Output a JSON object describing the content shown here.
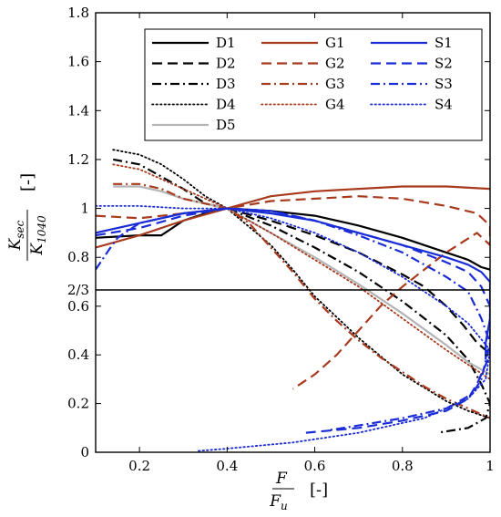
{
  "chart_data": {
    "type": "line",
    "xlim": [
      0.1,
      1.0
    ],
    "ylim_upper": [
      0.6667,
      1.8
    ],
    "ylim_lower": [
      0,
      0.6667
    ],
    "x_ticks": [
      {
        "value": 0.2,
        "label": "0.2"
      },
      {
        "value": 0.4,
        "label": "0.4"
      },
      {
        "value": 0.6,
        "label": "0.6"
      },
      {
        "value": 0.8,
        "label": "0.8"
      },
      {
        "value": 1.0,
        "label": "1"
      }
    ],
    "y_ticks": [
      {
        "value": 0,
        "label": "0"
      },
      {
        "value": 0.2,
        "label": "0.2"
      },
      {
        "value": 0.4,
        "label": "0.4"
      },
      {
        "value": 0.6,
        "label": "0.6"
      },
      {
        "value": 0.6667,
        "label": "2/3"
      },
      {
        "value": 0.8,
        "label": "0.8"
      },
      {
        "value": 1.0,
        "label": "1"
      },
      {
        "value": 1.2,
        "label": "1.2"
      },
      {
        "value": 1.4,
        "label": "1.4"
      },
      {
        "value": 1.6,
        "label": "1.6"
      },
      {
        "value": 1.8,
        "label": "1.8"
      }
    ],
    "xlabel": {
      "num": "F",
      "den": "F",
      "den_sub": "u",
      "unit": "[-]"
    },
    "ylabel": {
      "num": "K",
      "num_sub": "sec",
      "den": "K",
      "den_sub": "1040",
      "unit": "[-]"
    },
    "legend_position": "top-right",
    "series": [
      {
        "name": "D1",
        "color": "#000000",
        "dash": "solid",
        "points": [
          [
            0.1,
            0.88
          ],
          [
            0.2,
            0.89
          ],
          [
            0.25,
            0.89
          ],
          [
            0.3,
            0.95
          ],
          [
            0.35,
            0.98
          ],
          [
            0.4,
            1.0
          ],
          [
            0.5,
            0.99
          ],
          [
            0.6,
            0.97
          ],
          [
            0.7,
            0.93
          ],
          [
            0.8,
            0.88
          ],
          [
            0.9,
            0.82
          ],
          [
            0.95,
            0.79
          ],
          [
            0.98,
            0.76
          ],
          [
            1.0,
            0.75
          ]
        ]
      },
      {
        "name": "D2",
        "color": "#000000",
        "dash": "dash",
        "points": [
          [
            0.4,
            1.0
          ],
          [
            0.5,
            0.95
          ],
          [
            0.6,
            0.89
          ],
          [
            0.7,
            0.82
          ],
          [
            0.8,
            0.73
          ],
          [
            0.85,
            0.68
          ],
          [
            0.9,
            0.6
          ],
          [
            0.94,
            0.52
          ],
          [
            0.97,
            0.45
          ],
          [
            0.99,
            0.42
          ],
          [
            1.0,
            0.4
          ]
        ]
      },
      {
        "name": "D3",
        "color": "#000000",
        "dash": "dashdot",
        "points": [
          [
            0.14,
            1.2
          ],
          [
            0.2,
            1.18
          ],
          [
            0.3,
            1.08
          ],
          [
            0.35,
            1.02
          ],
          [
            0.4,
            1.0
          ],
          [
            0.5,
            0.93
          ],
          [
            0.6,
            0.84
          ],
          [
            0.7,
            0.74
          ],
          [
            0.8,
            0.62
          ],
          [
            0.9,
            0.48
          ],
          [
            0.95,
            0.38
          ],
          [
            0.98,
            0.28
          ],
          [
            1.0,
            0.2
          ],
          [
            0.99,
            0.14
          ],
          [
            0.95,
            0.1
          ],
          [
            0.88,
            0.08
          ]
        ]
      },
      {
        "name": "D4",
        "color": "#000000",
        "dash": "dot",
        "points": [
          [
            0.14,
            1.24
          ],
          [
            0.2,
            1.22
          ],
          [
            0.25,
            1.18
          ],
          [
            0.3,
            1.12
          ],
          [
            0.35,
            1.05
          ],
          [
            0.4,
            1.0
          ],
          [
            0.5,
            0.85
          ],
          [
            0.55,
            0.75
          ],
          [
            0.6,
            0.64
          ],
          [
            0.7,
            0.47
          ],
          [
            0.8,
            0.32
          ],
          [
            0.9,
            0.21
          ],
          [
            0.95,
            0.17
          ],
          [
            1.0,
            0.14
          ]
        ]
      },
      {
        "name": "D5",
        "color": "#b4b4b4",
        "dash": "solid",
        "points": [
          [
            0.14,
            1.09
          ],
          [
            0.2,
            1.09
          ],
          [
            0.25,
            1.07
          ],
          [
            0.3,
            1.04
          ],
          [
            0.4,
            1.0
          ],
          [
            0.5,
            0.9
          ],
          [
            0.6,
            0.8
          ],
          [
            0.7,
            0.69
          ],
          [
            0.8,
            0.57
          ],
          [
            0.9,
            0.44
          ],
          [
            0.95,
            0.37
          ],
          [
            1.0,
            0.32
          ]
        ]
      },
      {
        "name": "G1",
        "color": "#a83a1e",
        "dash": "solid",
        "points": [
          [
            0.1,
            0.84
          ],
          [
            0.2,
            0.89
          ],
          [
            0.3,
            0.95
          ],
          [
            0.4,
            1.0
          ],
          [
            0.5,
            1.05
          ],
          [
            0.6,
            1.07
          ],
          [
            0.7,
            1.08
          ],
          [
            0.8,
            1.09
          ],
          [
            0.9,
            1.09
          ],
          [
            1.0,
            1.08
          ]
        ]
      },
      {
        "name": "G2",
        "color": "#a83a1e",
        "dash": "dash",
        "points": [
          [
            0.1,
            0.97
          ],
          [
            0.2,
            0.96
          ],
          [
            0.3,
            0.98
          ],
          [
            0.4,
            1.0
          ],
          [
            0.5,
            1.03
          ],
          [
            0.6,
            1.04
          ],
          [
            0.7,
            1.05
          ],
          [
            0.8,
            1.04
          ],
          [
            0.9,
            1.01
          ],
          [
            0.97,
            0.98
          ],
          [
            1.0,
            0.93
          ],
          [
            1.0,
            0.85
          ],
          [
            0.97,
            0.9
          ],
          [
            0.9,
            0.82
          ],
          [
            0.8,
            0.68
          ],
          [
            0.75,
            0.6
          ],
          [
            0.7,
            0.5
          ],
          [
            0.65,
            0.4
          ],
          [
            0.6,
            0.32
          ],
          [
            0.55,
            0.26
          ]
        ]
      },
      {
        "name": "G3",
        "color": "#a83a1e",
        "dash": "dashdot",
        "points": [
          [
            0.14,
            1.1
          ],
          [
            0.2,
            1.1
          ],
          [
            0.25,
            1.08
          ],
          [
            0.3,
            1.04
          ],
          [
            0.4,
            1.0
          ],
          [
            0.45,
            0.94
          ],
          [
            0.5,
            0.84
          ],
          [
            0.55,
            0.74
          ],
          [
            0.6,
            0.63
          ],
          [
            0.65,
            0.54
          ],
          [
            0.7,
            0.46
          ],
          [
            0.75,
            0.39
          ],
          [
            0.8,
            0.33
          ],
          [
            0.85,
            0.27
          ],
          [
            0.9,
            0.22
          ],
          [
            0.95,
            0.18
          ],
          [
            1.0,
            0.14
          ]
        ]
      },
      {
        "name": "G4",
        "color": "#a83a1e",
        "dash": "dot",
        "points": [
          [
            0.14,
            1.18
          ],
          [
            0.2,
            1.16
          ],
          [
            0.3,
            1.08
          ],
          [
            0.4,
            1.0
          ],
          [
            0.5,
            0.9
          ],
          [
            0.6,
            0.79
          ],
          [
            0.7,
            0.68
          ],
          [
            0.8,
            0.55
          ],
          [
            0.9,
            0.42
          ],
          [
            0.95,
            0.36
          ],
          [
            1.0,
            0.3
          ]
        ]
      },
      {
        "name": "S1",
        "color": "#1a2cd6",
        "dash": "solid",
        "points": [
          [
            0.1,
            0.9
          ],
          [
            0.2,
            0.94
          ],
          [
            0.3,
            0.98
          ],
          [
            0.4,
            1.0
          ],
          [
            0.5,
            0.98
          ],
          [
            0.6,
            0.95
          ],
          [
            0.7,
            0.9
          ],
          [
            0.8,
            0.85
          ],
          [
            0.9,
            0.8
          ],
          [
            0.95,
            0.77
          ],
          [
            0.98,
            0.74
          ],
          [
            1.0,
            0.7
          ],
          [
            1.0,
            0.55
          ],
          [
            0.99,
            0.45
          ],
          [
            0.99,
            0.38
          ]
        ]
      },
      {
        "name": "S2",
        "color": "#1a2cd6",
        "dash": "dash",
        "points": [
          [
            0.1,
            0.89
          ],
          [
            0.2,
            0.92
          ],
          [
            0.3,
            0.97
          ],
          [
            0.4,
            1.0
          ],
          [
            0.5,
            0.99
          ],
          [
            0.6,
            0.95
          ],
          [
            0.7,
            0.9
          ],
          [
            0.8,
            0.85
          ],
          [
            0.9,
            0.78
          ],
          [
            0.95,
            0.74
          ],
          [
            0.98,
            0.68
          ],
          [
            1.0,
            0.6
          ],
          [
            1.0,
            0.4
          ],
          [
            0.97,
            0.28
          ],
          [
            0.95,
            0.22
          ],
          [
            0.9,
            0.17
          ],
          [
            0.8,
            0.13
          ],
          [
            0.7,
            0.1
          ],
          [
            0.58,
            0.08
          ]
        ]
      },
      {
        "name": "S3",
        "color": "#1a2cd6",
        "dash": "dashdot",
        "points": [
          [
            0.1,
            0.75
          ],
          [
            0.13,
            0.83
          ],
          [
            0.15,
            0.88
          ],
          [
            0.2,
            0.94
          ],
          [
            0.3,
            0.98
          ],
          [
            0.4,
            1.0
          ],
          [
            0.5,
            0.99
          ],
          [
            0.6,
            0.95
          ],
          [
            0.7,
            0.89
          ],
          [
            0.8,
            0.82
          ],
          [
            0.9,
            0.72
          ],
          [
            0.95,
            0.66
          ],
          [
            0.98,
            0.55
          ],
          [
            1.0,
            0.45
          ],
          [
            0.98,
            0.3
          ],
          [
            0.96,
            0.24
          ],
          [
            0.9,
            0.18
          ],
          [
            0.8,
            0.14
          ],
          [
            0.7,
            0.11
          ],
          [
            0.63,
            0.09
          ]
        ]
      },
      {
        "name": "S4",
        "color": "#1a2cd6",
        "dash": "dot",
        "points": [
          [
            0.1,
            1.01
          ],
          [
            0.2,
            1.01
          ],
          [
            0.3,
            1.0
          ],
          [
            0.4,
            1.0
          ],
          [
            0.5,
            0.96
          ],
          [
            0.6,
            0.9
          ],
          [
            0.7,
            0.82
          ],
          [
            0.8,
            0.72
          ],
          [
            0.9,
            0.6
          ],
          [
            0.95,
            0.53
          ],
          [
            1.0,
            0.42
          ],
          [
            0.99,
            0.3
          ],
          [
            0.95,
            0.22
          ],
          [
            0.85,
            0.14
          ],
          [
            0.7,
            0.08
          ],
          [
            0.55,
            0.04
          ],
          [
            0.4,
            0.015
          ],
          [
            0.33,
            0.005
          ]
        ]
      }
    ]
  }
}
